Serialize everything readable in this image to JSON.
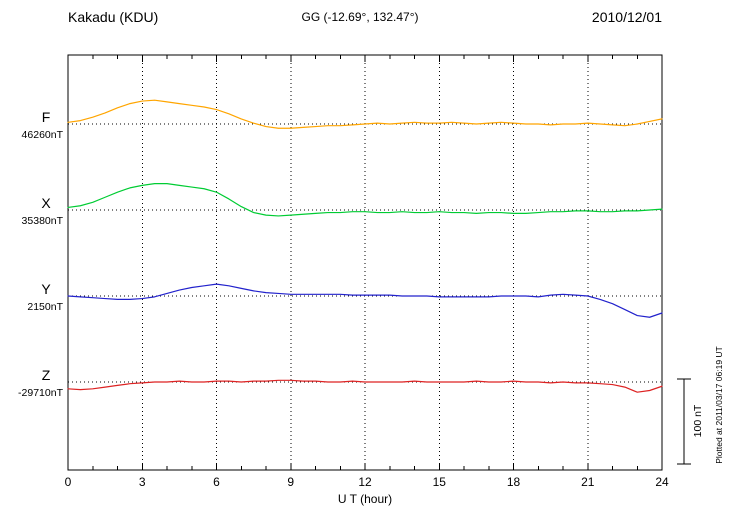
{
  "chart_data": {
    "type": "line",
    "title": "Kakadu (KDU)",
    "subtitle": "GG (-12.69°, 132.47°)",
    "date": "2010/12/01",
    "xlabel": "U T (hour)",
    "x_ticks": [
      "0",
      "3",
      "6",
      "9",
      "12",
      "15",
      "18",
      "21",
      "24"
    ],
    "x_range": [
      0,
      24
    ],
    "x_step_hours": 0.5,
    "grid": "dotted vertical every 3 hours, dotted horizontal baseline per component",
    "scale_bar_label": "100 nT",
    "scale_bar_nT": 100,
    "plotted_at": "Plotted at 2011/03/17 06:19 UT",
    "units": "nT deviation from component baseline",
    "series": [
      {
        "name": "F",
        "baseline_label": "46260nT",
        "baseline_nT": 46260,
        "color": "#FFA500",
        "values": [
          2,
          4,
          8,
          13,
          19,
          24,
          27,
          28,
          26,
          24,
          22,
          20,
          17,
          12,
          6,
          1,
          -3,
          -5,
          -5,
          -4,
          -3,
          -2,
          -2,
          -1,
          0,
          1,
          0,
          1,
          2,
          1,
          1,
          2,
          1,
          0,
          1,
          2,
          1,
          0,
          0,
          -1,
          0,
          0,
          1,
          0,
          -1,
          -2,
          0,
          3,
          6
        ]
      },
      {
        "name": "X",
        "baseline_label": "35380nT",
        "baseline_nT": 35380,
        "color": "#00CC33",
        "values": [
          3,
          5,
          9,
          15,
          21,
          26,
          29,
          31,
          31,
          29,
          27,
          25,
          21,
          13,
          4,
          -3,
          -6,
          -7,
          -6,
          -5,
          -4,
          -3,
          -3,
          -2,
          -2,
          -3,
          -3,
          -2,
          -3,
          -3,
          -2,
          -3,
          -3,
          -4,
          -3,
          -3,
          -4,
          -4,
          -3,
          -2,
          -2,
          -1,
          -1,
          -2,
          -2,
          -1,
          -1,
          0,
          1
        ]
      },
      {
        "name": "Y",
        "baseline_label": "2150nT",
        "baseline_nT": 2150,
        "color": "#2222CC",
        "values": [
          0,
          -1,
          -2,
          -3,
          -4,
          -4,
          -3,
          -1,
          3,
          7,
          10,
          12,
          14,
          12,
          9,
          6,
          4,
          3,
          2,
          2,
          2,
          2,
          2,
          1,
          1,
          1,
          1,
          0,
          0,
          0,
          -1,
          -1,
          -1,
          -1,
          -1,
          0,
          0,
          0,
          -1,
          1,
          2,
          1,
          0,
          -4,
          -9,
          -16,
          -23,
          -25,
          -20
        ]
      },
      {
        "name": "Z",
        "baseline_label": "-29710nT",
        "baseline_nT": -29710,
        "color": "#DD2222",
        "values": [
          -8,
          -9,
          -8,
          -6,
          -4,
          -2,
          -1,
          0,
          0,
          1,
          0,
          0,
          1,
          1,
          0,
          1,
          1,
          2,
          2,
          1,
          1,
          0,
          0,
          1,
          0,
          0,
          0,
          0,
          1,
          0,
          0,
          0,
          0,
          1,
          0,
          0,
          1,
          0,
          0,
          -1,
          0,
          -1,
          -1,
          -2,
          -3,
          -6,
          -12,
          -10,
          -5
        ]
      }
    ]
  }
}
